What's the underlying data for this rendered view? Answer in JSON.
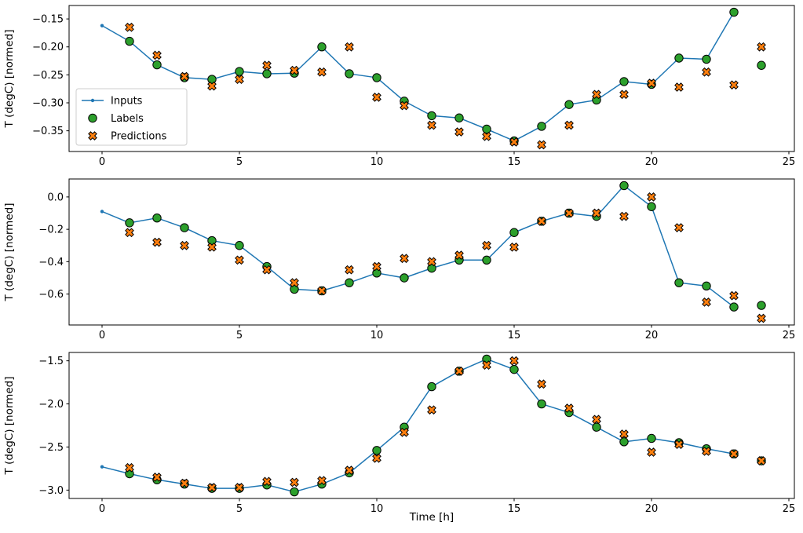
{
  "figure": {
    "background": "#ffffff",
    "xlabel": "Time [h]",
    "x_ticks": [
      0,
      5,
      10,
      15,
      20,
      25
    ],
    "x_tick_labels": [
      "0",
      "5",
      "10",
      "15",
      "20",
      "25"
    ],
    "colors": {
      "inputs": "#1f77b4",
      "labels": "#2ca02c",
      "predictions": "#ff7f0e",
      "marker_edge": "#000000"
    },
    "legend": {
      "border_color": "#cccccc",
      "position": "center-left-subplot-1",
      "items": [
        {
          "label": "Inputs",
          "marker": "line-dot",
          "color": "#1f77b4"
        },
        {
          "label": "Labels",
          "marker": "circle",
          "color": "#2ca02c"
        },
        {
          "label": "Predictions",
          "marker": "x",
          "color": "#ff7f0e"
        }
      ]
    }
  },
  "chart_data": [
    {
      "type": "line",
      "title": "",
      "xlabel": "",
      "ylabel": "T (degC) [normed]",
      "xlim": [
        -1.2,
        25.2
      ],
      "ylim": [
        -0.387,
        -0.126
      ],
      "grid": false,
      "y_ticks": [
        -0.15,
        -0.2,
        -0.25,
        -0.3,
        -0.35
      ],
      "y_tick_labels": [
        "−0.15",
        "−0.20",
        "−0.25",
        "−0.30",
        "−0.35"
      ],
      "show_legend": true,
      "series": [
        {
          "name": "Inputs",
          "style": "line-dot",
          "x": [
            0,
            1,
            2,
            3,
            4,
            5,
            6,
            7,
            8,
            9,
            10,
            11,
            12,
            13,
            14,
            15,
            16,
            17,
            18,
            19,
            20,
            21,
            22,
            23
          ],
          "values": [
            -0.162,
            -0.19,
            -0.232,
            -0.255,
            -0.258,
            -0.244,
            -0.248,
            -0.247,
            -0.2,
            -0.248,
            -0.255,
            -0.297,
            -0.323,
            -0.327,
            -0.347,
            -0.368,
            -0.342,
            -0.303,
            -0.295,
            -0.262,
            -0.267,
            -0.22,
            -0.222,
            -0.138
          ]
        },
        {
          "name": "Labels",
          "style": "scatter-circle",
          "x": [
            1,
            2,
            3,
            4,
            5,
            6,
            7,
            8,
            9,
            10,
            11,
            12,
            13,
            14,
            15,
            16,
            17,
            18,
            19,
            20,
            21,
            22,
            23,
            24
          ],
          "values": [
            -0.19,
            -0.232,
            -0.255,
            -0.258,
            -0.244,
            -0.248,
            -0.247,
            -0.2,
            -0.248,
            -0.255,
            -0.297,
            -0.323,
            -0.327,
            -0.347,
            -0.368,
            -0.342,
            -0.303,
            -0.295,
            -0.262,
            -0.267,
            -0.22,
            -0.222,
            -0.138,
            -0.233
          ]
        },
        {
          "name": "Predictions",
          "style": "scatter-x",
          "x": [
            1,
            2,
            3,
            4,
            5,
            6,
            7,
            8,
            9,
            10,
            11,
            12,
            13,
            14,
            15,
            16,
            17,
            18,
            19,
            20,
            21,
            22,
            23,
            24
          ],
          "values": [
            -0.165,
            -0.215,
            -0.253,
            -0.27,
            -0.258,
            -0.233,
            -0.242,
            -0.245,
            -0.2,
            -0.29,
            -0.305,
            -0.34,
            -0.352,
            -0.36,
            -0.37,
            -0.375,
            -0.34,
            -0.285,
            -0.285,
            -0.265,
            -0.272,
            -0.245,
            -0.268,
            -0.2
          ]
        }
      ]
    },
    {
      "type": "line",
      "title": "",
      "xlabel": "",
      "ylabel": "T (degC) [normed]",
      "xlim": [
        -1.2,
        25.2
      ],
      "ylim": [
        -0.791,
        0.111
      ],
      "grid": false,
      "y_ticks": [
        0.0,
        -0.2,
        -0.4,
        -0.6
      ],
      "y_tick_labels": [
        "0.0",
        "−0.2",
        "−0.4",
        "−0.6"
      ],
      "show_legend": false,
      "series": [
        {
          "name": "Inputs",
          "style": "line-dot",
          "x": [
            0,
            1,
            2,
            3,
            4,
            5,
            6,
            7,
            8,
            9,
            10,
            11,
            12,
            13,
            14,
            15,
            16,
            17,
            18,
            19,
            20,
            21,
            22,
            23
          ],
          "values": [
            -0.09,
            -0.16,
            -0.13,
            -0.19,
            -0.27,
            -0.3,
            -0.43,
            -0.57,
            -0.58,
            -0.53,
            -0.47,
            -0.5,
            -0.44,
            -0.39,
            -0.39,
            -0.22,
            -0.15,
            -0.1,
            -0.12,
            0.07,
            -0.06,
            -0.53,
            -0.55,
            -0.68
          ]
        },
        {
          "name": "Labels",
          "style": "scatter-circle",
          "x": [
            1,
            2,
            3,
            4,
            5,
            6,
            7,
            8,
            9,
            10,
            11,
            12,
            13,
            14,
            15,
            16,
            17,
            18,
            19,
            20,
            21,
            22,
            23,
            24
          ],
          "values": [
            -0.16,
            -0.13,
            -0.19,
            -0.27,
            -0.3,
            -0.43,
            -0.57,
            -0.58,
            -0.53,
            -0.47,
            -0.5,
            -0.44,
            -0.39,
            -0.39,
            -0.22,
            -0.15,
            -0.1,
            -0.12,
            0.07,
            -0.06,
            -0.53,
            -0.55,
            -0.68,
            -0.67
          ]
        },
        {
          "name": "Predictions",
          "style": "scatter-x",
          "x": [
            1,
            2,
            3,
            4,
            5,
            6,
            7,
            8,
            9,
            10,
            11,
            12,
            13,
            14,
            15,
            16,
            17,
            18,
            19,
            20,
            21,
            22,
            23,
            24
          ],
          "values": [
            -0.22,
            -0.28,
            -0.3,
            -0.31,
            -0.39,
            -0.45,
            -0.53,
            -0.58,
            -0.45,
            -0.43,
            -0.38,
            -0.4,
            -0.36,
            -0.3,
            -0.31,
            -0.15,
            -0.1,
            -0.1,
            -0.12,
            0.0,
            -0.19,
            -0.65,
            -0.61,
            -0.75
          ]
        }
      ]
    },
    {
      "type": "line",
      "title": "",
      "xlabel": "Time [h]",
      "ylabel": "T (degC) [normed]",
      "xlim": [
        -1.2,
        25.2
      ],
      "ylim": [
        -3.097,
        -1.403
      ],
      "grid": false,
      "y_ticks": [
        -1.5,
        -2.0,
        -2.5,
        -3.0
      ],
      "y_tick_labels": [
        "−1.5",
        "−2.0",
        "−2.5",
        "−3.0"
      ],
      "show_legend": false,
      "series": [
        {
          "name": "Inputs",
          "style": "line-dot",
          "x": [
            0,
            1,
            2,
            3,
            4,
            5,
            6,
            7,
            8,
            9,
            10,
            11,
            12,
            13,
            14,
            15,
            16,
            17,
            18,
            19,
            20,
            21,
            22,
            23
          ],
          "values": [
            -2.73,
            -2.81,
            -2.88,
            -2.93,
            -2.98,
            -2.98,
            -2.94,
            -3.02,
            -2.93,
            -2.8,
            -2.54,
            -2.27,
            -1.8,
            -1.62,
            -1.48,
            -1.6,
            -2.0,
            -2.1,
            -2.27,
            -2.44,
            -2.4,
            -2.45,
            -2.52,
            -2.58
          ]
        },
        {
          "name": "Labels",
          "style": "scatter-circle",
          "x": [
            1,
            2,
            3,
            4,
            5,
            6,
            7,
            8,
            9,
            10,
            11,
            12,
            13,
            14,
            15,
            16,
            17,
            18,
            19,
            20,
            21,
            22,
            23,
            24
          ],
          "values": [
            -2.81,
            -2.88,
            -2.93,
            -2.98,
            -2.98,
            -2.94,
            -3.02,
            -2.93,
            -2.8,
            -2.54,
            -2.27,
            -1.8,
            -1.62,
            -1.48,
            -1.6,
            -2.0,
            -2.1,
            -2.27,
            -2.44,
            -2.4,
            -2.45,
            -2.52,
            -2.58,
            -2.66
          ]
        },
        {
          "name": "Predictions",
          "style": "scatter-x",
          "x": [
            1,
            2,
            3,
            4,
            5,
            6,
            7,
            8,
            9,
            10,
            11,
            12,
            13,
            14,
            15,
            16,
            17,
            18,
            19,
            20,
            21,
            22,
            23,
            24
          ],
          "values": [
            -2.74,
            -2.85,
            -2.92,
            -2.97,
            -2.97,
            -2.9,
            -2.91,
            -2.89,
            -2.77,
            -2.63,
            -2.33,
            -2.07,
            -1.62,
            -1.55,
            -1.5,
            -1.77,
            -2.05,
            -2.18,
            -2.35,
            -2.56,
            -2.47,
            -2.55,
            -2.58,
            -2.66
          ]
        }
      ]
    }
  ]
}
